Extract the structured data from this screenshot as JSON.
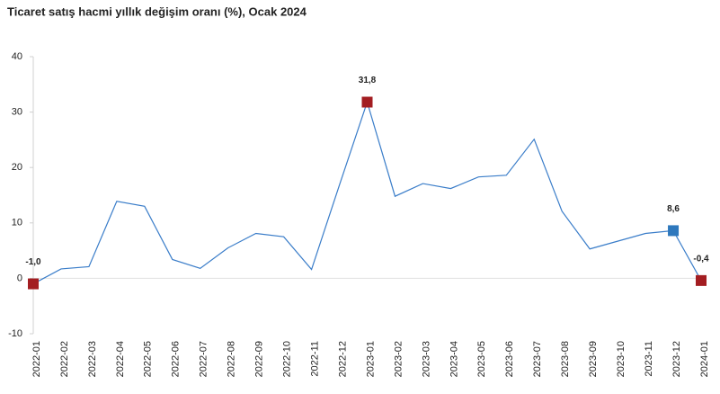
{
  "chart_data": {
    "type": "line",
    "title": "Ticaret satış hacmi yıllık değişim oranı (%), Ocak 2024",
    "categories": [
      "2022-01",
      "2022-02",
      "2022-03",
      "2022-04",
      "2022-05",
      "2022-06",
      "2022-07",
      "2022-08",
      "2022-09",
      "2022-10",
      "2022-11",
      "2022-12",
      "2023-01",
      "2023-02",
      "2023-03",
      "2023-04",
      "2023-05",
      "2023-06",
      "2023-07",
      "2023-08",
      "2023-09",
      "2023-10",
      "2023-11",
      "2023-12",
      "2024-01"
    ],
    "series": [
      {
        "color": "#3a7dc9",
        "values": [
          -1.0,
          1.7,
          2.1,
          13.9,
          13.0,
          3.4,
          1.8,
          5.5,
          8.1,
          7.5,
          1.6,
          16.8,
          31.8,
          14.8,
          17.1,
          16.2,
          18.3,
          18.6,
          25.1,
          12.1,
          5.3,
          6.7,
          8.1,
          8.6,
          -0.4
        ],
        "value_labels": [
          "-1,0",
          null,
          null,
          null,
          null,
          null,
          null,
          null,
          null,
          null,
          null,
          null,
          "31,8",
          null,
          null,
          null,
          null,
          null,
          null,
          null,
          null,
          null,
          null,
          "8,6",
          "-0,4"
        ],
        "marker_colors": [
          "#a31d21",
          null,
          null,
          null,
          null,
          null,
          null,
          null,
          null,
          null,
          null,
          null,
          "#a31d21",
          null,
          null,
          null,
          null,
          null,
          null,
          null,
          null,
          null,
          null,
          "#2e78bd",
          "#a31d21"
        ]
      }
    ],
    "ylim": [
      -10,
      40
    ],
    "yticks": [
      -10,
      0,
      10,
      20,
      30,
      40
    ],
    "zero_line": true
  }
}
